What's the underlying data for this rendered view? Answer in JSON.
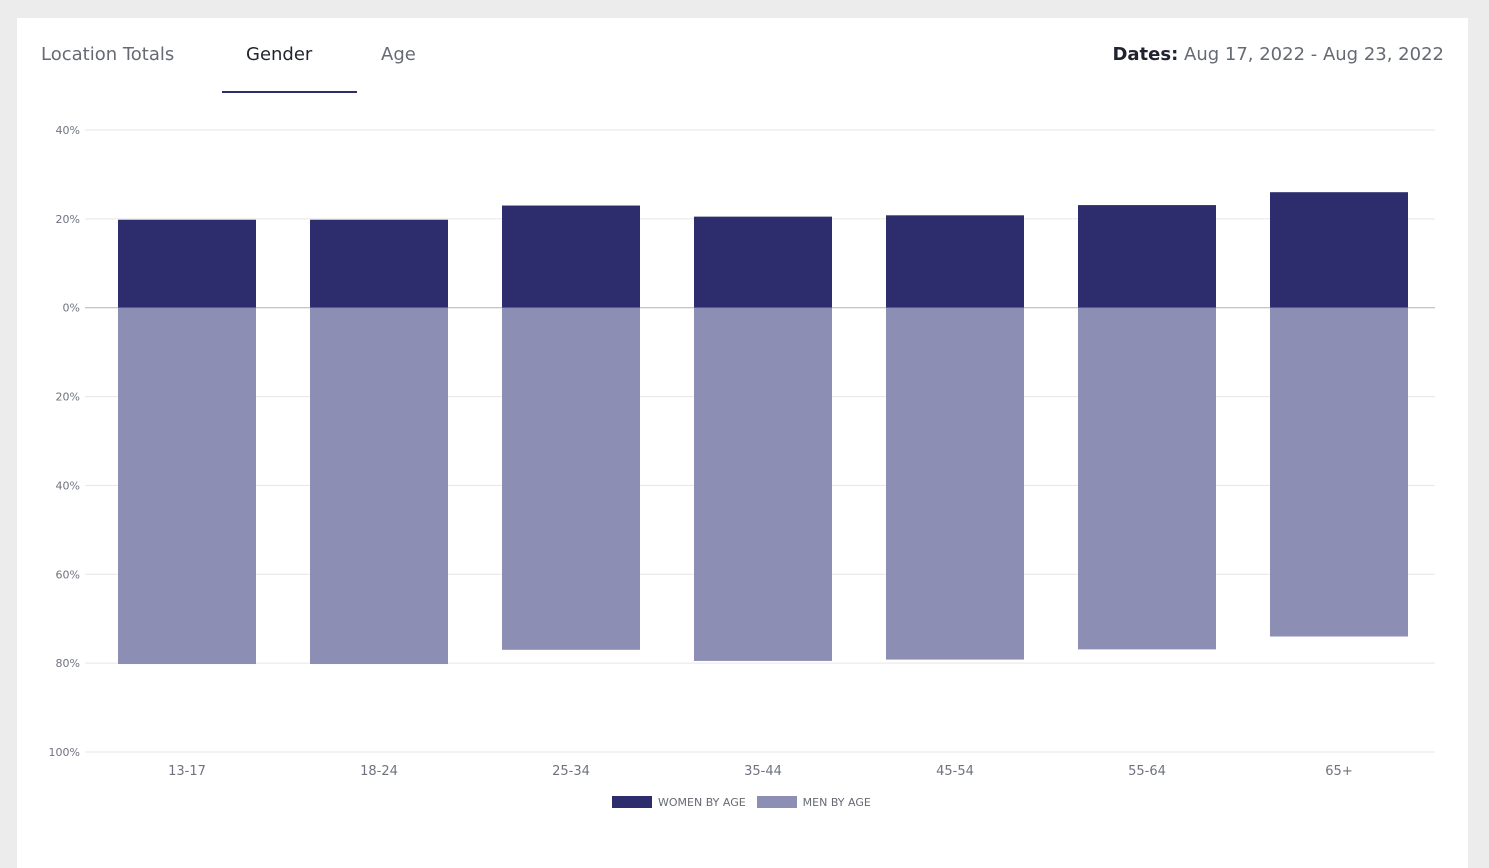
{
  "tabs": [
    {
      "label": "Location Totals",
      "active": false
    },
    {
      "label": "Gender",
      "active": true
    },
    {
      "label": "Age",
      "active": false
    }
  ],
  "dates": {
    "label": "Dates:",
    "value": "Aug 17, 2022 - Aug 23, 2022"
  },
  "colors": {
    "women": "#2d2d6e",
    "men": "#8c8eb3",
    "grid": "#e6e6e6",
    "zero_line": "#aeb2bb"
  },
  "chart_data": {
    "type": "bar",
    "categories": [
      "13-17",
      "18-24",
      "25-34",
      "35-44",
      "45-54",
      "55-64",
      "65+"
    ],
    "series": [
      {
        "name": "WOMEN BY AGE",
        "values": [
          19.8,
          19.8,
          23.0,
          20.5,
          20.8,
          23.1,
          26.0
        ]
      },
      {
        "name": "MEN BY AGE",
        "values": [
          80.2,
          80.2,
          77.0,
          79.5,
          79.2,
          76.9,
          74.0
        ]
      }
    ],
    "ylim": [
      -100,
      40
    ],
    "yticks": [
      {
        "value": 40,
        "label": "40%"
      },
      {
        "value": 20,
        "label": "20%"
      },
      {
        "value": 0,
        "label": "0%"
      },
      {
        "value": -20,
        "label": "20%"
      },
      {
        "value": -40,
        "label": "40%"
      },
      {
        "value": -60,
        "label": "60%"
      },
      {
        "value": -80,
        "label": "80%"
      },
      {
        "value": -100,
        "label": "100%"
      }
    ],
    "grid": true,
    "legend_position": "bottom",
    "title": "",
    "xlabel": "",
    "ylabel": ""
  }
}
